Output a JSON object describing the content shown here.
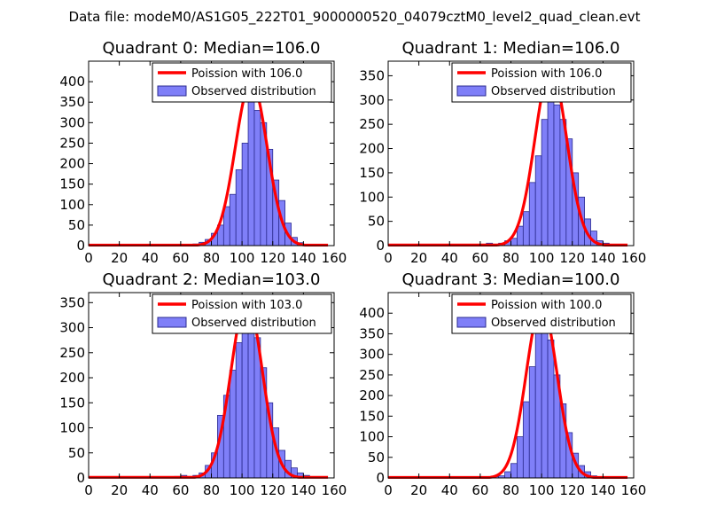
{
  "figure_title": "Data file: modeM0/AS1G05_222T01_9000000520_04079cztM0_level2_quad_clean.evt",
  "colors": {
    "bar_fill": "#7f7ff8",
    "bar_stroke": "#2b2b8f",
    "curve": "#ff0000",
    "axis": "#000000",
    "background": "#ffffff"
  },
  "chart_data": [
    {
      "type": "bar",
      "title": "Quadrant 0: Median=106.0",
      "legend_position": "top-right",
      "legend": [
        "Poission with 106.0",
        "Observed distribution"
      ],
      "xlim": [
        0,
        160
      ],
      "ylim": [
        0,
        450
      ],
      "xticks": [
        0,
        20,
        40,
        60,
        80,
        100,
        120,
        140,
        160
      ],
      "yticks": [
        0,
        50,
        100,
        150,
        200,
        250,
        300,
        350,
        400
      ],
      "bin_width": 4,
      "bins": [
        {
          "x": 60,
          "count": 2
        },
        {
          "x": 64,
          "count": 3
        },
        {
          "x": 68,
          "count": 4
        },
        {
          "x": 72,
          "count": 8
        },
        {
          "x": 76,
          "count": 15
        },
        {
          "x": 80,
          "count": 30
        },
        {
          "x": 84,
          "count": 50
        },
        {
          "x": 88,
          "count": 95
        },
        {
          "x": 92,
          "count": 125
        },
        {
          "x": 96,
          "count": 185
        },
        {
          "x": 100,
          "count": 250
        },
        {
          "x": 104,
          "count": 355
        },
        {
          "x": 108,
          "count": 330
        },
        {
          "x": 112,
          "count": 300
        },
        {
          "x": 116,
          "count": 235
        },
        {
          "x": 120,
          "count": 160
        },
        {
          "x": 124,
          "count": 110
        },
        {
          "x": 128,
          "count": 55
        },
        {
          "x": 132,
          "count": 20
        },
        {
          "x": 136,
          "count": 7
        },
        {
          "x": 140,
          "count": 3
        }
      ],
      "poisson_mean": 106.0,
      "poisson_peak": 400
    },
    {
      "type": "bar",
      "title": "Quadrant 1: Median=106.0",
      "legend_position": "top-right",
      "legend": [
        "Poission with 106.0",
        "Observed distribution"
      ],
      "xlim": [
        0,
        160
      ],
      "ylim": [
        0,
        380
      ],
      "xticks": [
        0,
        20,
        40,
        60,
        80,
        100,
        120,
        140,
        160
      ],
      "yticks": [
        0,
        50,
        100,
        150,
        200,
        250,
        300,
        350
      ],
      "bin_width": 4,
      "bins": [
        {
          "x": 60,
          "count": 3
        },
        {
          "x": 64,
          "count": 5
        },
        {
          "x": 68,
          "count": 3
        },
        {
          "x": 72,
          "count": 5
        },
        {
          "x": 76,
          "count": 10
        },
        {
          "x": 80,
          "count": 15
        },
        {
          "x": 84,
          "count": 40
        },
        {
          "x": 88,
          "count": 70
        },
        {
          "x": 92,
          "count": 130
        },
        {
          "x": 96,
          "count": 185
        },
        {
          "x": 100,
          "count": 260
        },
        {
          "x": 104,
          "count": 320
        },
        {
          "x": 108,
          "count": 290
        },
        {
          "x": 112,
          "count": 260
        },
        {
          "x": 116,
          "count": 220
        },
        {
          "x": 120,
          "count": 150
        },
        {
          "x": 124,
          "count": 100
        },
        {
          "x": 128,
          "count": 55
        },
        {
          "x": 132,
          "count": 30
        },
        {
          "x": 136,
          "count": 10
        },
        {
          "x": 140,
          "count": 5
        }
      ],
      "poisson_mean": 106.0,
      "poisson_peak": 365
    },
    {
      "type": "bar",
      "title": "Quadrant 2: Median=103.0",
      "legend_position": "top-right",
      "legend": [
        "Poission with 103.0",
        "Observed distribution"
      ],
      "xlim": [
        0,
        160
      ],
      "ylim": [
        0,
        370
      ],
      "xticks": [
        0,
        20,
        40,
        60,
        80,
        100,
        120,
        140,
        160
      ],
      "yticks": [
        0,
        50,
        100,
        150,
        200,
        250,
        300,
        350
      ],
      "bin_width": 4,
      "bins": [
        {
          "x": 56,
          "count": 3
        },
        {
          "x": 60,
          "count": 5
        },
        {
          "x": 64,
          "count": 3
        },
        {
          "x": 68,
          "count": 5
        },
        {
          "x": 72,
          "count": 10
        },
        {
          "x": 76,
          "count": 25
        },
        {
          "x": 80,
          "count": 50
        },
        {
          "x": 84,
          "count": 125
        },
        {
          "x": 88,
          "count": 165
        },
        {
          "x": 92,
          "count": 215
        },
        {
          "x": 96,
          "count": 270
        },
        {
          "x": 100,
          "count": 300
        },
        {
          "x": 104,
          "count": 315
        },
        {
          "x": 108,
          "count": 280
        },
        {
          "x": 112,
          "count": 220
        },
        {
          "x": 116,
          "count": 150
        },
        {
          "x": 120,
          "count": 100
        },
        {
          "x": 124,
          "count": 55
        },
        {
          "x": 128,
          "count": 35
        },
        {
          "x": 132,
          "count": 20
        },
        {
          "x": 136,
          "count": 10
        },
        {
          "x": 140,
          "count": 5
        }
      ],
      "poisson_mean": 103.0,
      "poisson_peak": 355
    },
    {
      "type": "bar",
      "title": "Quadrant 3: Median=100.0",
      "legend_position": "top-right",
      "legend": [
        "Poission with 100.0",
        "Observed distribution"
      ],
      "xlim": [
        0,
        160
      ],
      "ylim": [
        0,
        450
      ],
      "xticks": [
        0,
        20,
        40,
        60,
        80,
        100,
        120,
        140,
        160
      ],
      "yticks": [
        0,
        50,
        100,
        150,
        200,
        250,
        300,
        350,
        400
      ],
      "bin_width": 4,
      "bins": [
        {
          "x": 56,
          "count": 2
        },
        {
          "x": 60,
          "count": 3
        },
        {
          "x": 64,
          "count": 3
        },
        {
          "x": 68,
          "count": 3
        },
        {
          "x": 72,
          "count": 5
        },
        {
          "x": 76,
          "count": 15
        },
        {
          "x": 80,
          "count": 35
        },
        {
          "x": 84,
          "count": 100
        },
        {
          "x": 88,
          "count": 185
        },
        {
          "x": 92,
          "count": 270
        },
        {
          "x": 96,
          "count": 380
        },
        {
          "x": 100,
          "count": 365
        },
        {
          "x": 104,
          "count": 335
        },
        {
          "x": 108,
          "count": 250
        },
        {
          "x": 112,
          "count": 180
        },
        {
          "x": 116,
          "count": 110
        },
        {
          "x": 120,
          "count": 60
        },
        {
          "x": 124,
          "count": 30
        },
        {
          "x": 128,
          "count": 15
        },
        {
          "x": 132,
          "count": 5
        },
        {
          "x": 136,
          "count": 3
        }
      ],
      "poisson_mean": 100.0,
      "poisson_peak": 420
    }
  ]
}
